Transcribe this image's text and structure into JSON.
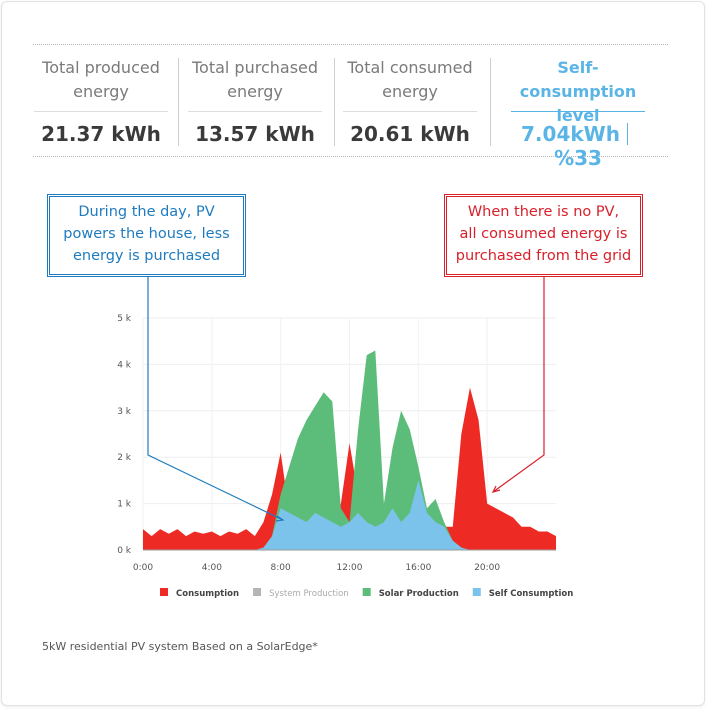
{
  "stats": [
    {
      "label": "Total produced energy",
      "value": "21.37 kWh"
    },
    {
      "label": "Total purchased energy",
      "value": "13.57 kWh"
    },
    {
      "label": "Total consumed energy",
      "value": "20.61 kWh"
    },
    {
      "label": "Self-consumption level",
      "value": "7.04kWh",
      "value2": "%33"
    }
  ],
  "callouts": [
    {
      "lines": [
        "During the day, PV",
        "powers the house, less",
        "energy is purchased"
      ]
    },
    {
      "lines": [
        "When there is no PV,",
        "all consumed energy is",
        "purchased from the grid"
      ]
    }
  ],
  "footnote": "5kW residential PV system Based on a SolarEdge*",
  "chart_data": {
    "type": "area",
    "x": [
      0,
      0.5,
      1,
      1.5,
      2,
      2.5,
      3,
      3.5,
      4,
      4.5,
      5,
      5.5,
      6,
      6.5,
      7,
      7.5,
      8,
      8.5,
      9,
      9.5,
      10,
      10.5,
      11,
      11.5,
      12,
      12.5,
      13,
      13.5,
      14,
      14.5,
      15,
      15.5,
      16,
      16.5,
      17,
      17.5,
      18,
      18.5,
      19,
      19.5,
      20,
      20.5,
      21,
      21.5,
      22,
      22.5,
      23,
      23.5,
      24
    ],
    "xlim": [
      0,
      24
    ],
    "xticks": [
      {
        "value": 0,
        "label": "0:00"
      },
      {
        "value": 4,
        "label": "4:00"
      },
      {
        "value": 8,
        "label": "8:00"
      },
      {
        "value": 12,
        "label": "12:00"
      },
      {
        "value": 16,
        "label": "16:00"
      },
      {
        "value": 20,
        "label": "20:00"
      }
    ],
    "ylim": [
      0,
      5
    ],
    "yticks": [
      {
        "value": 0,
        "label": "0 k"
      },
      {
        "value": 1,
        "label": "1 k"
      },
      {
        "value": 2,
        "label": "2 k"
      },
      {
        "value": 3,
        "label": "3 k"
      },
      {
        "value": 4,
        "label": "4 k"
      },
      {
        "value": 5,
        "label": "5 k"
      }
    ],
    "grid": true,
    "legend": "bottom",
    "series": [
      {
        "name": "Consumption",
        "color": "#ee2a24",
        "values": [
          0.45,
          0.3,
          0.45,
          0.35,
          0.45,
          0.3,
          0.4,
          0.35,
          0.4,
          0.3,
          0.4,
          0.35,
          0.45,
          0.3,
          0.6,
          1.2,
          2.1,
          0.8,
          0.5,
          0.5,
          0.5,
          0.5,
          0.5,
          1.0,
          2.3,
          1.2,
          0.6,
          0.5,
          0.5,
          0.6,
          0.6,
          0.5,
          0.7,
          0.8,
          0.6,
          0.5,
          0.5,
          2.5,
          3.5,
          2.8,
          1.0,
          0.9,
          0.8,
          0.7,
          0.5,
          0.5,
          0.4,
          0.4,
          0.3
        ]
      },
      {
        "name": "System Production",
        "color": "#b5b5b5",
        "values": [
          null,
          null,
          null,
          null,
          null,
          null,
          null,
          null,
          null,
          null,
          null,
          null,
          null,
          null,
          null,
          null,
          null,
          null,
          null,
          null,
          null,
          null,
          null,
          null,
          null,
          null,
          null,
          null,
          null,
          null,
          null,
          null,
          null,
          null,
          null,
          null,
          null,
          null,
          null,
          null,
          null,
          null,
          null,
          null,
          null,
          null,
          null,
          null,
          null
        ]
      },
      {
        "name": "Solar Production",
        "color": "#5cbd7a",
        "values": [
          0,
          0,
          0,
          0,
          0,
          0,
          0,
          0,
          0,
          0,
          0,
          0,
          0,
          0,
          0.05,
          0.3,
          1.2,
          1.8,
          2.4,
          2.8,
          3.1,
          3.4,
          3.2,
          0.9,
          0.6,
          2.6,
          4.2,
          4.3,
          1.0,
          2.2,
          3.0,
          2.6,
          1.8,
          0.9,
          1.1,
          0.6,
          0.2,
          0.05,
          0,
          0,
          0,
          0,
          0,
          0,
          0,
          0,
          0,
          0,
          0
        ]
      },
      {
        "name": "Self Consumption",
        "color": "#7cc3ec",
        "values": [
          0,
          0,
          0,
          0,
          0,
          0,
          0,
          0,
          0,
          0,
          0,
          0,
          0,
          0,
          0.05,
          0.3,
          0.9,
          0.8,
          0.7,
          0.6,
          0.8,
          0.7,
          0.6,
          0.5,
          0.6,
          0.8,
          0.6,
          0.5,
          0.6,
          0.9,
          0.6,
          0.8,
          1.5,
          0.8,
          0.6,
          0.5,
          0.2,
          0.05,
          0,
          0,
          0,
          0,
          0,
          0,
          0,
          0,
          0,
          0,
          0
        ]
      }
    ]
  }
}
